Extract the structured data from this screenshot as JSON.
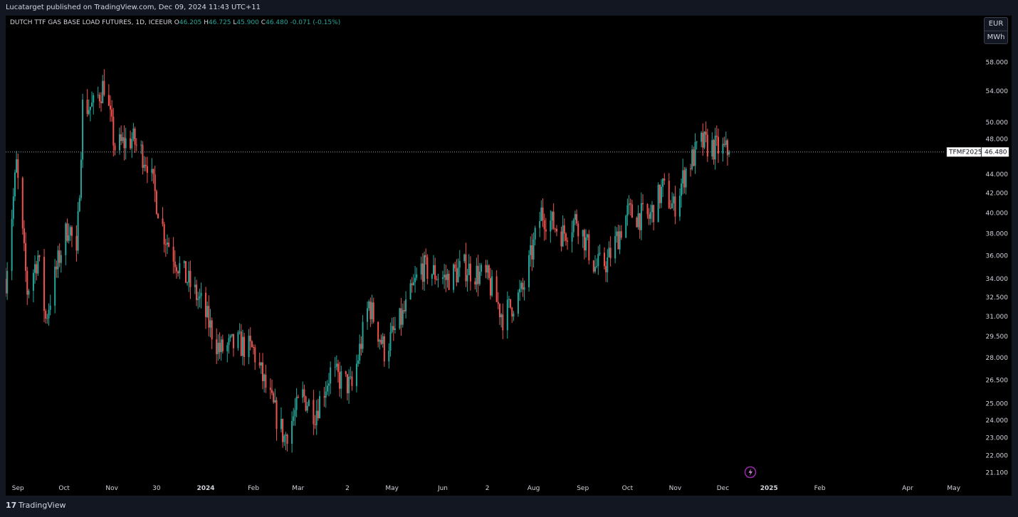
{
  "header": {
    "published": "Lucatarget published on TradingView.com, Dec 09, 2024 11:43 UTC+11"
  },
  "legend": {
    "symbol": "DUTCH TTF GAS BASE LOAD FUTURES, 1D, ICEEUR",
    "o_label": "O",
    "o_value": "46.205",
    "h_label": "H",
    "h_value": "46.725",
    "l_label": "L",
    "l_value": "45.900",
    "c_label": "C",
    "c_value": "46.480",
    "change": "-0.071 (-0.15%)"
  },
  "unit": {
    "currency": "EUR",
    "unit": "MWh"
  },
  "price_tag": {
    "ticker": "TFMF2025",
    "price": "46.480",
    "value": 46.48
  },
  "footer": {
    "logo": "17",
    "brand": "TradingView"
  },
  "colors": {
    "up": "#26a69a",
    "down": "#ef5350",
    "background": "#000000",
    "frame": "#131722",
    "text": "#d1d4dc"
  },
  "chart_data": {
    "type": "candlestick",
    "scale": "log",
    "ylim": [
      20.5,
      60
    ],
    "y_ticks": [
      "58.000",
      "54.000",
      "50.000",
      "48.000",
      "44.000",
      "42.000",
      "40.000",
      "38.000",
      "36.000",
      "34.000",
      "32.500",
      "31.000",
      "29.500",
      "28.000",
      "26.500",
      "25.000",
      "24.000",
      "23.000",
      "22.000",
      "21.100"
    ],
    "x_ticks": [
      "Sep",
      "Oct",
      "Nov",
      "30",
      "2024",
      "Feb",
      "Mar",
      "2",
      "May",
      "Jun",
      "2",
      "Aug",
      "Sep",
      "Oct",
      "Nov",
      "Dec",
      "2025",
      "Feb",
      "Apr",
      "May"
    ],
    "x_range": [
      "2023-08-24",
      "2025-05-15"
    ],
    "x_tick_dates": [
      "2023-09-01",
      "2023-10-01",
      "2023-11-01",
      "2023-11-30",
      "2024-01-01",
      "2024-02-01",
      "2024-03-01",
      "2024-04-02",
      "2024-05-01",
      "2024-06-03",
      "2024-07-02",
      "2024-08-01",
      "2024-09-02",
      "2024-10-01",
      "2024-11-01",
      "2024-12-02",
      "2025-01-01",
      "2025-02-03",
      "2025-04-01",
      "2025-05-01"
    ],
    "last_close": 46.48,
    "anchors": [
      {
        "date": "2023-08-24",
        "close": 34.0
      },
      {
        "date": "2023-08-31",
        "close": 45.0
      },
      {
        "date": "2023-09-07",
        "close": 33.0
      },
      {
        "date": "2023-09-14",
        "close": 36.0
      },
      {
        "date": "2023-09-19",
        "close": 30.8
      },
      {
        "date": "2023-09-28",
        "close": 36.0
      },
      {
        "date": "2023-10-04",
        "close": 39.0
      },
      {
        "date": "2023-10-09",
        "close": 35.5
      },
      {
        "date": "2023-10-13",
        "close": 52.0
      },
      {
        "date": "2023-10-20",
        "close": 52.0
      },
      {
        "date": "2023-10-27",
        "close": 55.0
      },
      {
        "date": "2023-11-03",
        "close": 47.0
      },
      {
        "date": "2023-11-14",
        "close": 48.0
      },
      {
        "date": "2023-11-24",
        "close": 45.5
      },
      {
        "date": "2023-12-05",
        "close": 38.0
      },
      {
        "date": "2023-12-15",
        "close": 35.0
      },
      {
        "date": "2023-12-29",
        "close": 32.0
      },
      {
        "date": "2024-01-10",
        "close": 28.5
      },
      {
        "date": "2024-01-22",
        "close": 29.0
      },
      {
        "date": "2024-02-01",
        "close": 28.5
      },
      {
        "date": "2024-02-09",
        "close": 26.0
      },
      {
        "date": "2024-02-21",
        "close": 23.0
      },
      {
        "date": "2024-03-04",
        "close": 25.5
      },
      {
        "date": "2024-03-12",
        "close": 24.5
      },
      {
        "date": "2024-03-22",
        "close": 27.0
      },
      {
        "date": "2024-04-05",
        "close": 26.0
      },
      {
        "date": "2024-04-16",
        "close": 32.0
      },
      {
        "date": "2024-04-26",
        "close": 28.5
      },
      {
        "date": "2024-05-08",
        "close": 31.0
      },
      {
        "date": "2024-05-20",
        "close": 35.0
      },
      {
        "date": "2024-06-05",
        "close": 34.0
      },
      {
        "date": "2024-06-17",
        "close": 35.0
      },
      {
        "date": "2024-07-02",
        "close": 34.0
      },
      {
        "date": "2024-07-12",
        "close": 31.0
      },
      {
        "date": "2024-07-25",
        "close": 33.0
      },
      {
        "date": "2024-08-06",
        "close": 40.0
      },
      {
        "date": "2024-08-20",
        "close": 38.0
      },
      {
        "date": "2024-08-29",
        "close": 39.5
      },
      {
        "date": "2024-09-10",
        "close": 35.0
      },
      {
        "date": "2024-09-18",
        "close": 35.5
      },
      {
        "date": "2024-10-01",
        "close": 40.0
      },
      {
        "date": "2024-10-15",
        "close": 39.5
      },
      {
        "date": "2024-10-24",
        "close": 42.5
      },
      {
        "date": "2024-10-31",
        "close": 40.5
      },
      {
        "date": "2024-11-08",
        "close": 44.5
      },
      {
        "date": "2024-11-18",
        "close": 47.5
      },
      {
        "date": "2024-11-26",
        "close": 47.0
      },
      {
        "date": "2024-12-06",
        "close": 46.48
      }
    ],
    "extremes": {
      "high": {
        "date": "2023-10-27",
        "value": 57.0
      },
      "low": {
        "date": "2024-02-22",
        "value": 22.3
      }
    }
  }
}
